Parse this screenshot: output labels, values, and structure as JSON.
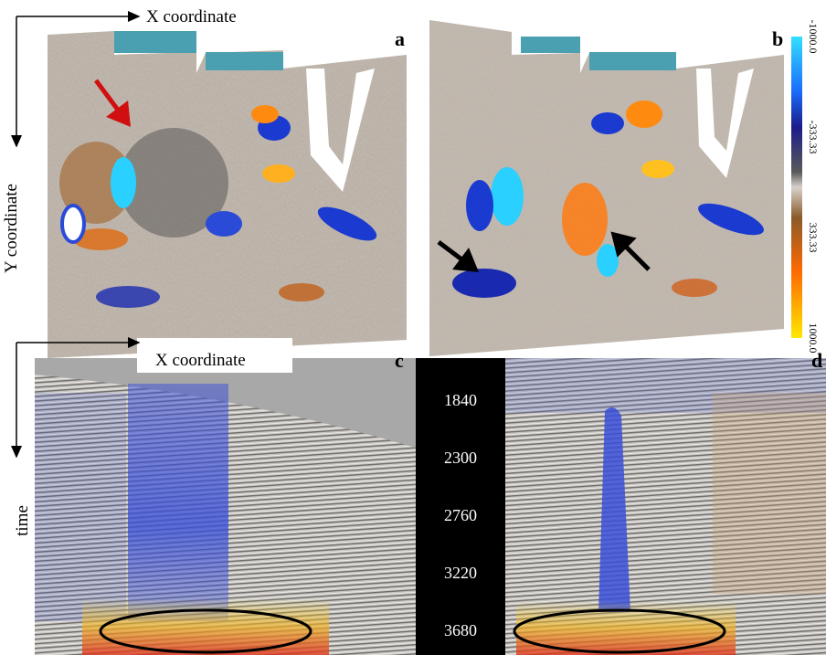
{
  "axes": {
    "top_x": "X coordinate",
    "top_y": "Y coordinate",
    "bottom_x": "X coordinate",
    "bottom_y": "time"
  },
  "panels": [
    {
      "label": "a"
    },
    {
      "label": "b"
    },
    {
      "label": "c"
    },
    {
      "label": "d"
    }
  ],
  "colorbar": {
    "ticks": [
      "-1000.0",
      "-333.33",
      "333.33",
      "1000.0"
    ]
  },
  "time_scale": {
    "ticks": [
      1840,
      2300,
      2760,
      3220,
      3680
    ]
  }
}
